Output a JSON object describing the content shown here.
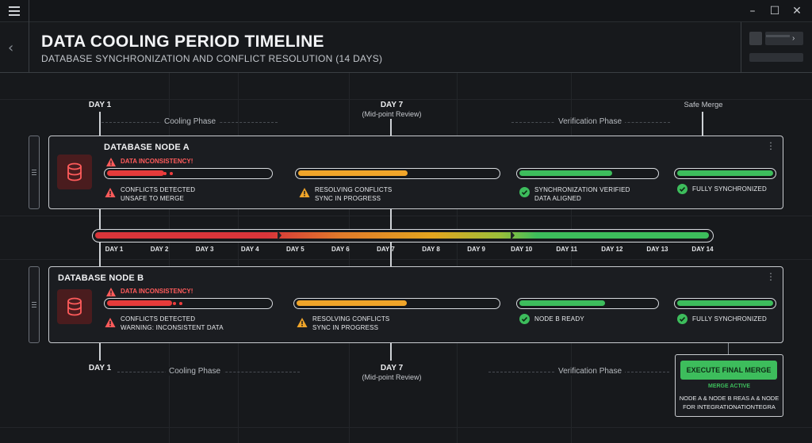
{
  "header": {
    "title": "DATA COOLING PERIOD TIMELINE",
    "subtitle": "DATABASE SYNCHRONIZATION AND CONFLICT RESOLUTION (14 DAYS)"
  },
  "top_markers": {
    "day1": "DAY 1",
    "day7": "DAY 7",
    "day7_sub": "(Mid-point Review)",
    "safe_merge": "Safe Merge",
    "cooling_phase": "Cooling Phase",
    "verification_phase": "Verification Phase"
  },
  "bottom_markers": {
    "day1": "DAY 1",
    "day7": "DAY 7",
    "day7_sub": "(Mid-point Review)",
    "cooling_phase": "Cooling Phase",
    "verification_phase": "Verification Phase"
  },
  "node_a": {
    "title": "DATABASE NODE A",
    "alert": "DATA INCONSISTENCY!",
    "stages": [
      {
        "line1": "CONFLICTS DETECTED",
        "line2": "UNSAFE TO MERGE",
        "status": "error",
        "progress": 0.35
      },
      {
        "line1": "RESOLVING CONFLICTS",
        "line2": "SYNC IN PROGRESS",
        "status": "warning",
        "progress": 0.55
      },
      {
        "line1": "SYNCHRONIZATION VERIFIED",
        "line2": "DATA ALIGNED",
        "status": "ok",
        "progress": 0.68
      },
      {
        "line1": "FULLY SYNCHRONIZED",
        "line2": "",
        "status": "ok",
        "progress": 1.0
      }
    ]
  },
  "node_b": {
    "title": "DATABASE NODE B",
    "alert": "DATA INCONSISTENCY!",
    "stages": [
      {
        "line1": "CONFLICTS DETECTED",
        "line2": "WARNING: INCONSISTENT DATA",
        "status": "error",
        "progress": 0.4
      },
      {
        "line1": "RESOLVING CONFLICTS",
        "line2": "SYNC IN PROGRESS",
        "status": "warning",
        "progress": 0.55
      },
      {
        "line1": "NODE B READY",
        "line2": "",
        "status": "ok",
        "progress": 0.63
      },
      {
        "line1": "FULLY SYNCHRONIZED",
        "line2": "",
        "status": "ok",
        "progress": 1.0
      }
    ]
  },
  "timeline": {
    "days": [
      "DAY 1",
      "DAY 2",
      "DAY 3",
      "DAY 4",
      "DAY 5",
      "DAY 6",
      "DAY 7",
      "DAY 8",
      "DAY 9",
      "DAY 10",
      "DAY 11",
      "DAY 12",
      "DAY 13",
      "DAY 14"
    ]
  },
  "merge": {
    "button": "EXECUTE FINAL MERGE",
    "status": "MERGE ACTIVE",
    "desc_line1": "NODE A & NODE B REAS A & NODE",
    "desc_line2": "FOR INTEGRATIONATIONTEGRA"
  },
  "colors": {
    "error": "#e63b3b",
    "warning": "#f0a52a",
    "ok": "#3dbd5c"
  },
  "icons": {
    "menu": "hamburger-icon",
    "database": "database-icon",
    "warning": "warning-icon",
    "check": "check-circle-icon"
  }
}
